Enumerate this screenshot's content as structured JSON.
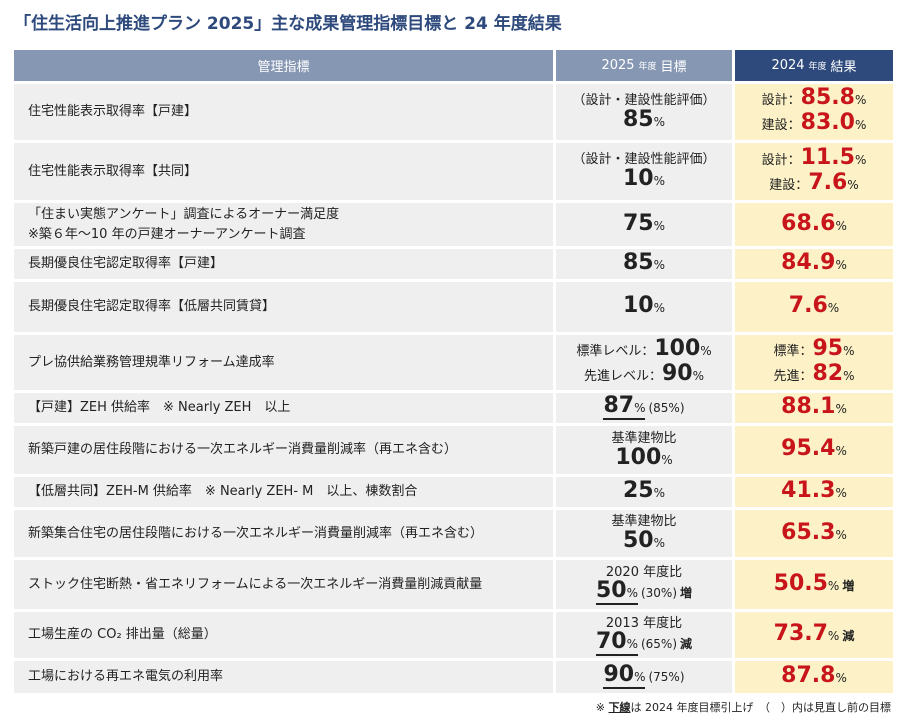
{
  "title": "「住生活向上推進プラン 2025」主な成果管理指標目標と 24 年度結果",
  "header": [
    {
      "label": "管理指標"
    },
    {
      "year": "2025",
      "era": "年度",
      "label": "目標"
    },
    {
      "year": "2024",
      "era": "年度",
      "label": "結果"
    }
  ],
  "rows": [
    {
      "indicator": [
        "住宅性能表示取得率【戸建】"
      ],
      "target": [
        {
          "note": "（設計・建設性能評価）"
        },
        {
          "value": "85",
          "unit": "%"
        }
      ],
      "result": [
        {
          "label": "設計：",
          "value": "85.8",
          "unit": "%"
        },
        {
          "label": "建設：",
          "value": "83.0",
          "unit": "%"
        }
      ]
    },
    {
      "indicator": [
        "住宅性能表示取得率【共同】"
      ],
      "target": [
        {
          "note": "（設計・建設性能評価）"
        },
        {
          "value": "10",
          "unit": "%"
        }
      ],
      "result": [
        {
          "label": "設計：",
          "value": "11.5",
          "unit": "%"
        },
        {
          "label": "建設：",
          "value": "7.6",
          "unit": "%"
        }
      ]
    },
    {
      "indicator": [
        "「住まい実態アンケート」調査によるオーナー満足度",
        "※築６年～10 年の戸建オーナーアンケート調査"
      ],
      "target": [
        {
          "value": "75",
          "unit": "%"
        }
      ],
      "result": [
        {
          "value": "68.6",
          "unit": "%"
        }
      ]
    },
    {
      "indicator": [
        "長期優良住宅認定取得率【戸建】"
      ],
      "target": [
        {
          "value": "85",
          "unit": "%"
        }
      ],
      "result": [
        {
          "value": "84.9",
          "unit": "%"
        }
      ]
    },
    {
      "indicator": [
        "長期優良住宅認定取得率【低層共同賃貸】"
      ],
      "target": [
        {
          "value": "10",
          "unit": "%"
        }
      ],
      "result": [
        {
          "value": "7.6",
          "unit": "%"
        }
      ]
    },
    {
      "indicator": [
        "プレ協供給業務管理規準リフォーム達成率"
      ],
      "target": [
        {
          "label": "標準レベル：",
          "value": "100",
          "unit": "%"
        },
        {
          "label": "先進レベル：",
          "value": "90",
          "unit": "%"
        }
      ],
      "result": [
        {
          "label": "標準：",
          "value": "95",
          "unit": "%"
        },
        {
          "label": "先進：",
          "value": "82",
          "unit": "%"
        }
      ]
    },
    {
      "indicator": [
        "【戸建】ZEH 供給率　※ Nearly ZEH　以上"
      ],
      "target": [
        {
          "value": "87",
          "unit": "%",
          "underline": true,
          "extra": "(85%)"
        }
      ],
      "result": [
        {
          "value": "88.1",
          "unit": "%"
        }
      ]
    },
    {
      "indicator": [
        "新築戸建の居住段階における一次エネルギー消費量削減率（再エネ含む）"
      ],
      "target": [
        {
          "note": "基準建物比"
        },
        {
          "value": "100",
          "unit": "%"
        }
      ],
      "result": [
        {
          "value": "95.4",
          "unit": "%"
        }
      ]
    },
    {
      "indicator": [
        "【低層共同】ZEH-M 供給率　※ Nearly ZEH- M　以上、棟数割合"
      ],
      "target": [
        {
          "value": "25",
          "unit": "%"
        }
      ],
      "result": [
        {
          "value": "41.3",
          "unit": "%"
        }
      ]
    },
    {
      "indicator": [
        "新築集合住宅の居住段階における一次エネルギー消費量削減率（再エネ含む）"
      ],
      "target": [
        {
          "note": "基準建物比"
        },
        {
          "value": "50",
          "unit": "%"
        }
      ],
      "result": [
        {
          "value": "65.3",
          "unit": "%"
        }
      ]
    },
    {
      "indicator": [
        "ストック住宅断熱・省エネリフォームによる一次エネルギー消費量削減貢献量"
      ],
      "target": [
        {
          "note": "2020 年度比"
        },
        {
          "value": "50",
          "unit": "%",
          "underline": true,
          "extra": "(30%)",
          "suffix": "増"
        }
      ],
      "result": [
        {
          "value": "50.5",
          "unit": "%",
          "suffix": "増"
        }
      ]
    },
    {
      "indicator": [
        "工場生産の CO₂ 排出量（総量）"
      ],
      "target": [
        {
          "note": "2013 年度比"
        },
        {
          "value": "70",
          "unit": "%",
          "underline": true,
          "extra": "(65%)",
          "suffix": "減"
        }
      ],
      "result": [
        {
          "value": "73.7",
          "unit": "%",
          "suffix": "減"
        }
      ]
    },
    {
      "indicator": [
        "工場における再エネ電気の利用率"
      ],
      "target": [
        {
          "value": "90",
          "unit": "%",
          "underline": true,
          "extra": "(75%)"
        }
      ],
      "result": [
        {
          "value": "87.8",
          "unit": "%"
        }
      ]
    }
  ],
  "footnote": {
    "mark": "※",
    "emphasis": "下線",
    "text": "は 2024 年度目標引上げ　（　）内は見直し前の目標"
  }
}
